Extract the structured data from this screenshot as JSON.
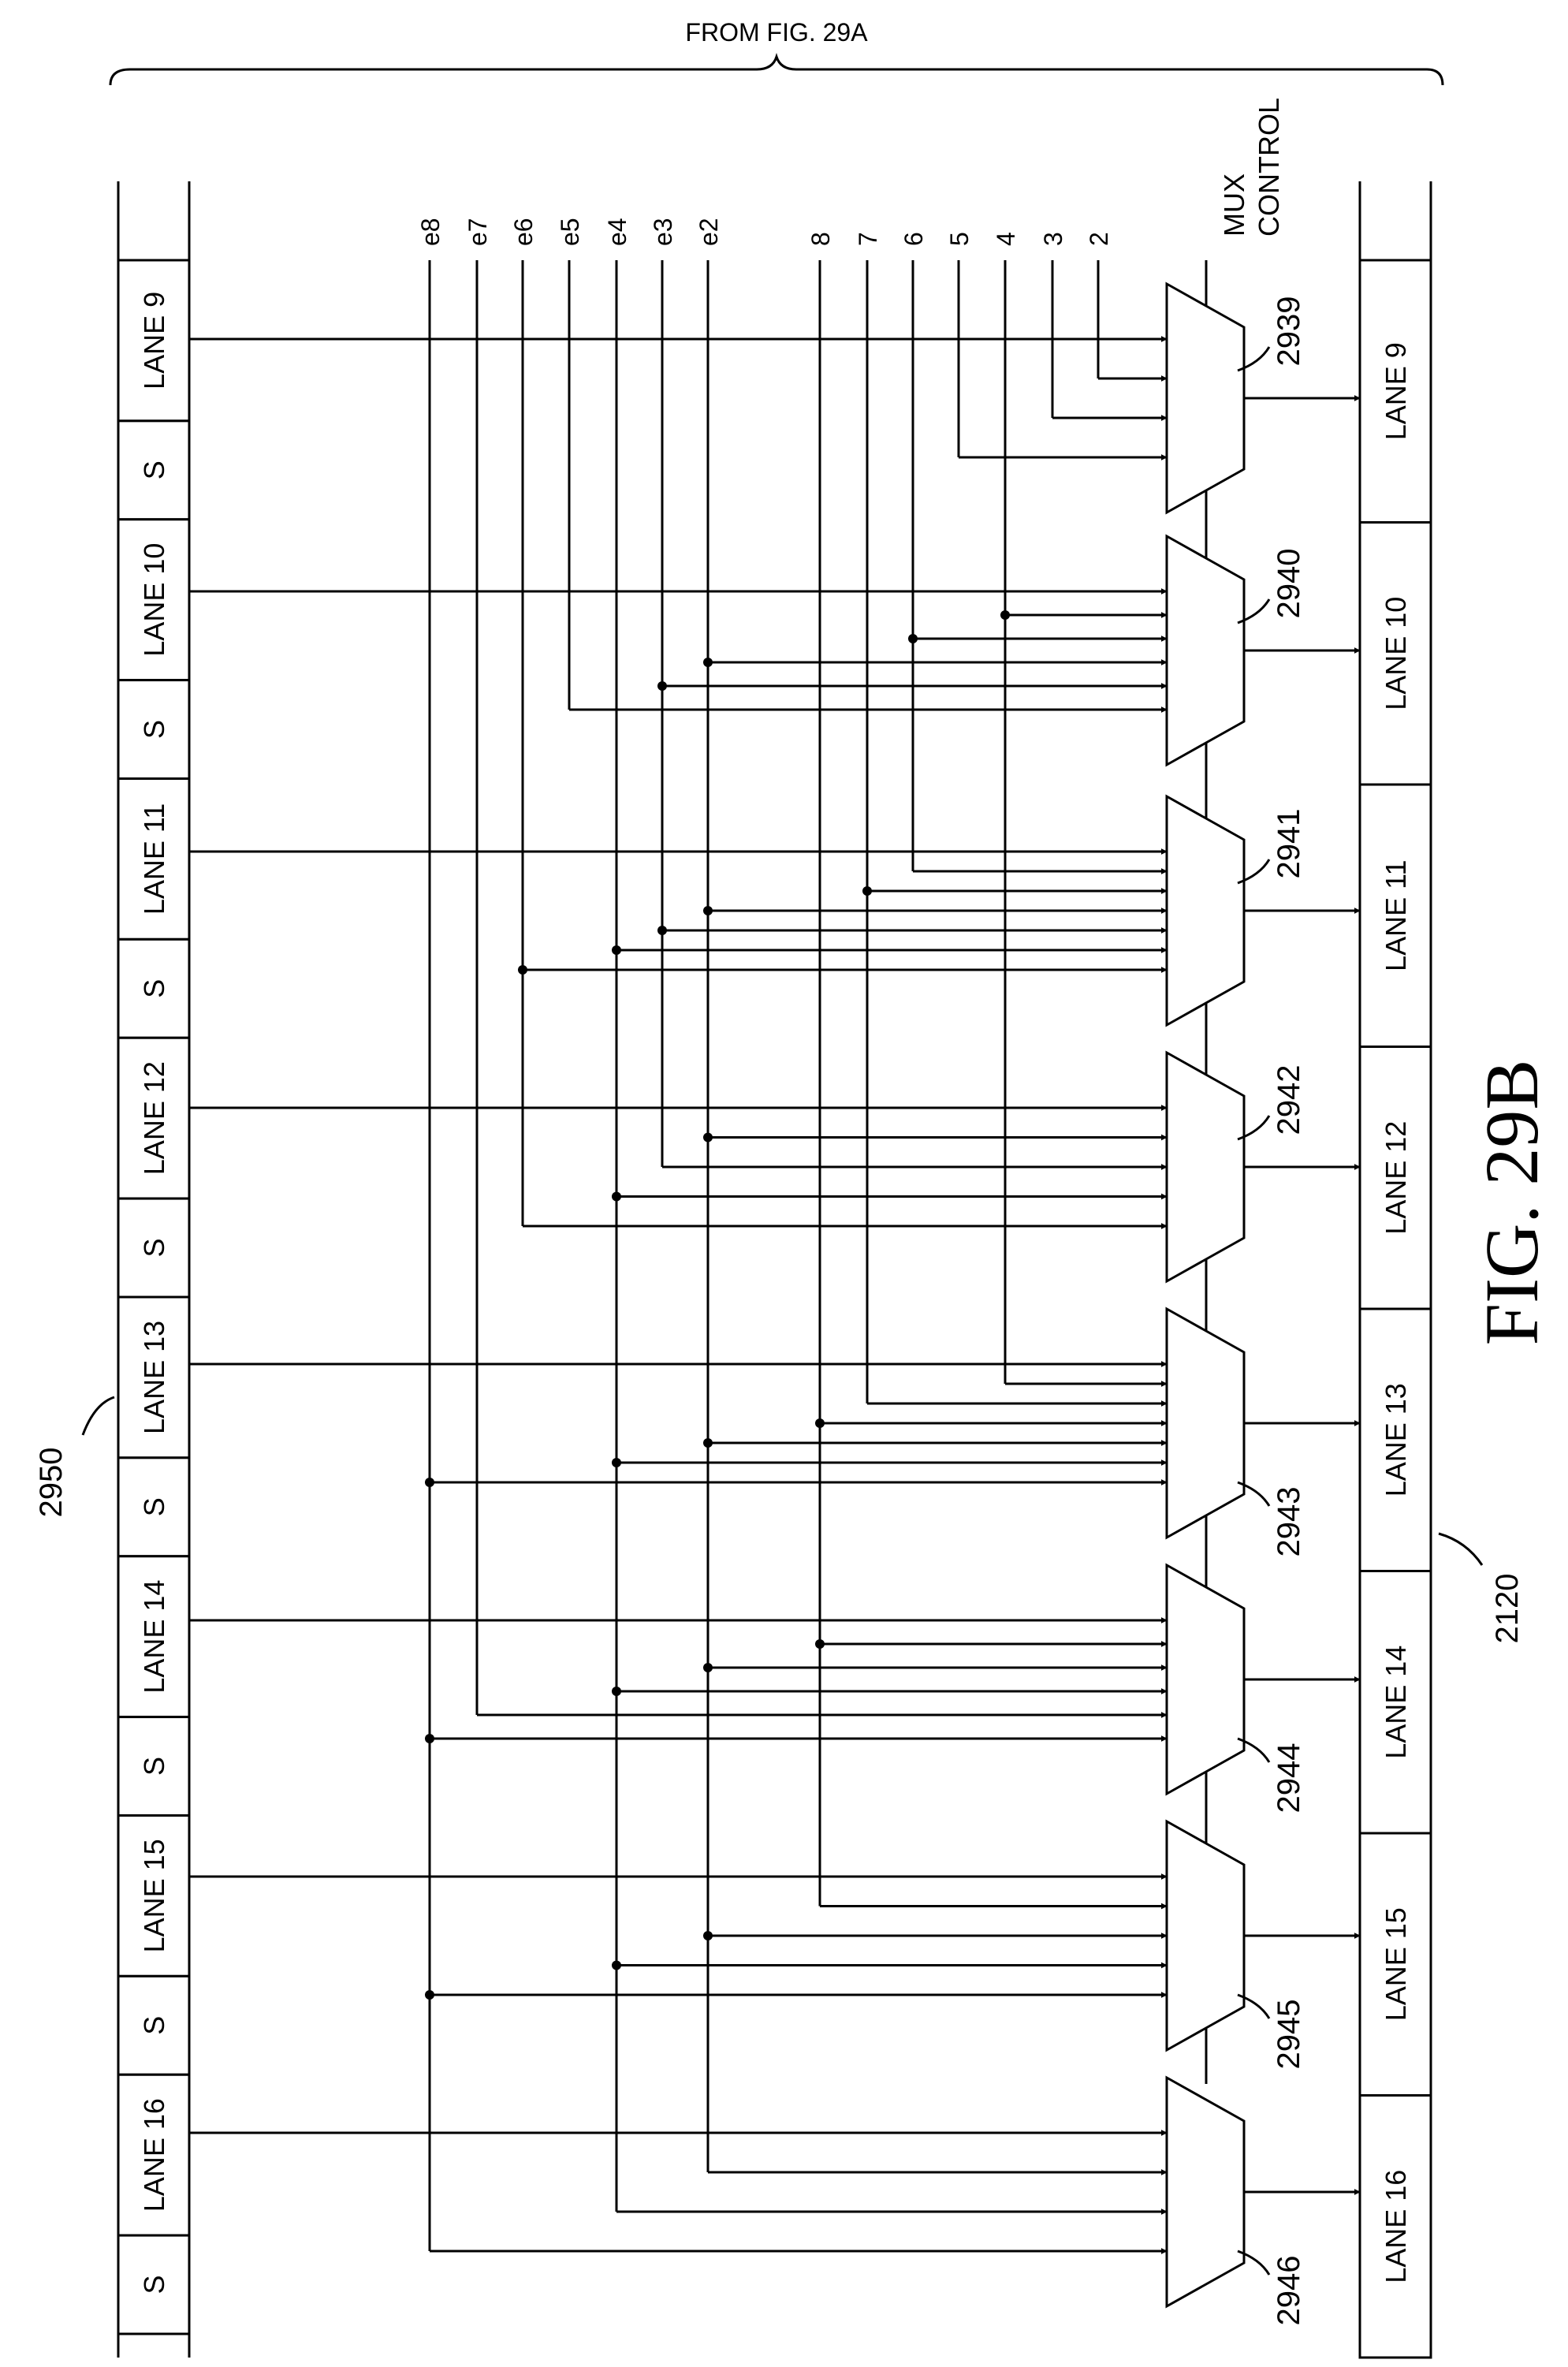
{
  "header": {
    "text": "FROM FIG. 29A"
  },
  "input_register": {
    "ref": "2950",
    "cells": [
      "LANE 9",
      "S",
      "LANE 10",
      "S",
      "LANE 11",
      "S",
      "LANE 12",
      "S",
      "LANE 13",
      "S",
      "LANE 14",
      "S",
      "LANE 15",
      "S",
      "LANE 16",
      "S"
    ]
  },
  "output_register": {
    "ref": "2120",
    "cells": [
      "LANE 9",
      "LANE 10",
      "LANE 11",
      "LANE 12",
      "LANE 13",
      "LANE 14",
      "LANE 15",
      "LANE 16"
    ]
  },
  "bus_labels": [
    "e8",
    "e7",
    "e6",
    "e5",
    "e4",
    "e3",
    "e2",
    "8",
    "7",
    "6",
    "5",
    "4",
    "3",
    "2"
  ],
  "mux_control": {
    "line1": "MUX",
    "line2": "CONTROL"
  },
  "muxes": [
    "2939",
    "2940",
    "2941",
    "2942",
    "2943",
    "2944",
    "2945",
    "2946"
  ],
  "figure_label": "FIG. 29B"
}
